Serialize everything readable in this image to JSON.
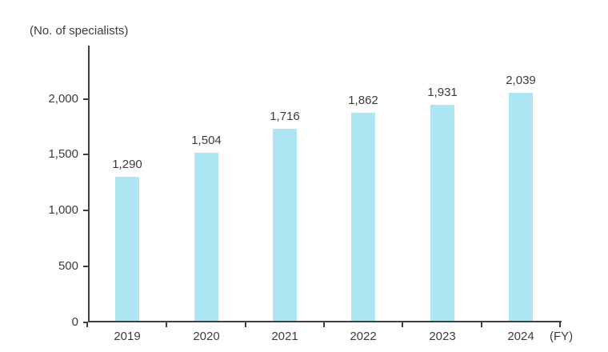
{
  "chart_data": {
    "type": "bar",
    "title": "",
    "ylabel": "(No. of specialists)",
    "xlabel": "(FY)",
    "categories": [
      "2019",
      "2020",
      "2021",
      "2022",
      "2023",
      "2024"
    ],
    "values": [
      1290,
      1504,
      1716,
      1862,
      1931,
      2039
    ],
    "value_labels": [
      "1,290",
      "1,504",
      "1,716",
      "1,862",
      "1,931",
      "2,039"
    ],
    "y_ticks": [
      0,
      500,
      1000,
      1500,
      2000
    ],
    "y_tick_labels": [
      "0",
      "500",
      "1,000",
      "1,500",
      "2,000"
    ],
    "ylim": [
      0,
      2468
    ],
    "grid": false,
    "legend": "none",
    "bar_color": "#aee5f2",
    "axis_color": "#3f3f3f",
    "text_color": "#3c3c3c"
  }
}
